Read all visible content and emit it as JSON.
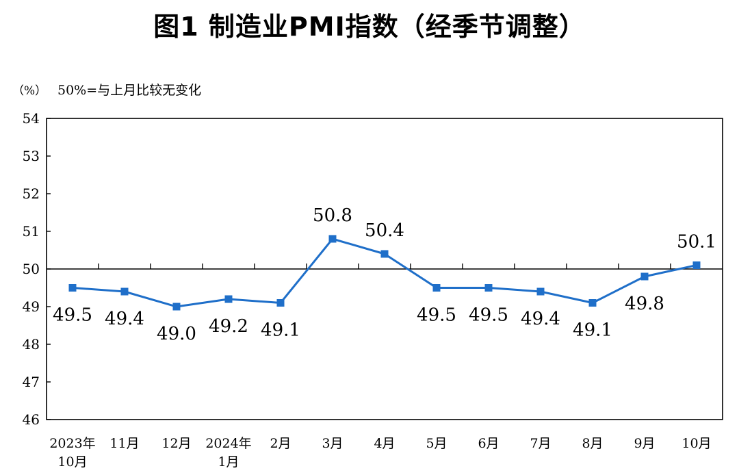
{
  "chart_data": {
    "type": "line",
    "title": "图1  制造业PMI指数（经季节调整）",
    "ylabel": "（%）",
    "annotation": "50%=与上月比较无变化",
    "ylim": [
      46,
      54
    ],
    "yticks": [
      "54",
      "53",
      "52",
      "51",
      "50",
      "49",
      "48",
      "47",
      "46"
    ],
    "reference_line": 50,
    "categories": [
      [
        "2023年",
        "10月"
      ],
      [
        "11月"
      ],
      [
        "12月"
      ],
      [
        "2024年",
        "1月"
      ],
      [
        "2月"
      ],
      [
        "3月"
      ],
      [
        "4月"
      ],
      [
        "5月"
      ],
      [
        "6月"
      ],
      [
        "7月"
      ],
      [
        "8月"
      ],
      [
        "9月"
      ],
      [
        "10月"
      ]
    ],
    "series": [
      {
        "values": [
          49.5,
          49.4,
          49.0,
          49.2,
          49.1,
          50.8,
          50.4,
          49.5,
          49.5,
          49.4,
          49.1,
          49.8,
          50.1
        ],
        "labels": [
          "49.5",
          "49.4",
          "49.0",
          "49.2",
          "49.1",
          "50.8",
          "50.4",
          "49.5",
          "49.5",
          "49.4",
          "49.1",
          "49.8",
          "50.1"
        ],
        "color": "#1f6fc9"
      }
    ],
    "grid": false,
    "legend": "none"
  }
}
